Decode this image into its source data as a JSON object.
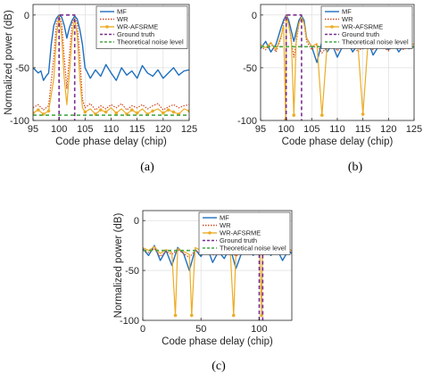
{
  "colors": {
    "mf": "#1f6fbf",
    "wr": "#d0471f",
    "wr_afsrme": "#ecac25",
    "ground_truth": "#7a2f8f",
    "noise_level": "#45a845"
  },
  "chart_data": [
    {
      "type": "line",
      "caption": "(a)",
      "xlabel": "Code phase delay (chip)",
      "ylabel": "Normalized power (dB)",
      "xlim": [
        95,
        125
      ],
      "ylim": [
        -100,
        10
      ],
      "xticks": [
        95,
        100,
        105,
        110,
        115,
        120,
        125
      ],
      "yticks": [
        0,
        -50,
        -100
      ],
      "grid": true,
      "legend": "top-right",
      "series": [
        {
          "name": "MF",
          "key": "mf",
          "x": [
            95,
            96,
            96.5,
            97,
            97.5,
            98,
            98.5,
            99,
            99.5,
            100,
            100.5,
            101,
            101.5,
            102,
            102.5,
            103,
            103.5,
            104,
            104.5,
            105,
            106,
            107,
            108,
            109,
            110,
            111,
            112,
            113,
            114,
            115,
            116,
            117,
            118,
            119,
            120,
            121,
            122,
            123,
            124,
            125
          ],
          "y": [
            -50,
            -55,
            -53,
            -62,
            -58,
            -55,
            -28,
            -10,
            -3,
            0,
            -2,
            -10,
            -22,
            -12,
            -5,
            -1,
            -4,
            -14,
            -28,
            -50,
            -60,
            -52,
            -58,
            -47,
            -55,
            -62,
            -50,
            -57,
            -53,
            -60,
            -48,
            -55,
            -58,
            -52,
            -60,
            -55,
            -50,
            -57,
            -53,
            -52
          ]
        },
        {
          "name": "WR",
          "key": "wr",
          "x": [
            95,
            96,
            97,
            98,
            99,
            99.5,
            100,
            100.5,
            101,
            101.5,
            102,
            102.5,
            103,
            103.5,
            104,
            104.5,
            105,
            106,
            107,
            108,
            109,
            110,
            111,
            112,
            113,
            114,
            115,
            116,
            117,
            118,
            119,
            120,
            121,
            122,
            123,
            124,
            125
          ],
          "y": [
            -88,
            -85,
            -90,
            -86,
            -40,
            -8,
            0,
            -8,
            -40,
            -70,
            -38,
            -8,
            -3,
            -8,
            -40,
            -80,
            -88,
            -84,
            -90,
            -86,
            -89,
            -85,
            -88,
            -84,
            -90,
            -86,
            -88,
            -85,
            -89,
            -86,
            -84,
            -90,
            -87,
            -85,
            -88,
            -86,
            -85
          ]
        },
        {
          "name": "WR-AFSRME",
          "key": "wr_afsrme",
          "x": [
            95,
            96,
            97,
            98,
            99,
            99.5,
            100,
            100.5,
            101,
            101.5,
            102,
            102.5,
            103,
            103.5,
            104,
            104.5,
            105,
            106,
            107,
            108,
            109,
            110,
            111,
            112,
            113,
            114,
            115,
            116,
            117,
            118,
            119,
            120,
            121,
            122,
            123,
            124,
            125
          ],
          "y": [
            -93,
            -90,
            -94,
            -91,
            -60,
            -20,
            -1,
            -20,
            -60,
            -85,
            -55,
            -20,
            -3,
            -20,
            -60,
            -88,
            -92,
            -89,
            -94,
            -90,
            -92,
            -88,
            -93,
            -89,
            -94,
            -90,
            -93,
            -89,
            -94,
            -91,
            -89,
            -93,
            -90,
            -92,
            -94,
            -89,
            -91
          ]
        },
        {
          "name": "Ground truth",
          "key": "ground_truth",
          "style": "dashed",
          "x": [
            100,
            100,
            103,
            103
          ],
          "y": [
            -100,
            0,
            0,
            -100
          ]
        },
        {
          "name": "Theoretical noise level",
          "key": "noise_level",
          "style": "dashed",
          "x": [
            95,
            125
          ],
          "y": [
            -95,
            -95
          ]
        }
      ]
    },
    {
      "type": "line",
      "caption": "(b)",
      "xlabel": "Code phase delay (chip)",
      "ylabel": "",
      "xlim": [
        95,
        125
      ],
      "ylim": [
        -100,
        10
      ],
      "xticks": [
        95,
        100,
        105,
        110,
        115,
        120,
        125
      ],
      "yticks": [
        0,
        -50,
        -100
      ],
      "grid": true,
      "legend": "top-right",
      "series": [
        {
          "name": "MF",
          "key": "mf",
          "x": [
            95,
            96,
            97,
            98,
            98.5,
            99,
            99.5,
            100,
            100.5,
            101,
            101.5,
            102,
            102.5,
            103,
            103.5,
            104,
            105,
            106,
            107,
            108,
            109,
            110,
            111,
            112,
            113,
            114,
            115,
            116,
            117,
            118,
            119,
            120,
            121,
            122,
            123,
            124,
            125
          ],
          "y": [
            -32,
            -25,
            -35,
            -28,
            -20,
            -12,
            -5,
            0,
            -5,
            -15,
            -25,
            -15,
            -5,
            -1,
            -5,
            -22,
            -30,
            -45,
            -25,
            -35,
            -28,
            -40,
            -30,
            -25,
            -35,
            -28,
            -32,
            -25,
            -38,
            -30,
            -27,
            -33,
            -26,
            -35,
            -29,
            -32,
            -30
          ]
        },
        {
          "name": "WR",
          "key": "wr",
          "x": [
            95,
            96,
            97,
            98,
            99,
            99.5,
            100,
            100.5,
            101,
            101.5,
            102,
            102.5,
            103,
            103.5,
            104,
            105,
            106,
            107,
            108,
            109,
            110,
            111,
            112,
            113,
            114,
            115,
            116,
            117,
            118,
            119,
            120,
            121,
            122,
            123,
            124,
            125
          ],
          "y": [
            -30,
            -33,
            -27,
            -35,
            -22,
            -8,
            0,
            -8,
            -25,
            -40,
            -25,
            -8,
            -2,
            -8,
            -25,
            -33,
            -28,
            -36,
            -30,
            -27,
            -34,
            -29,
            -32,
            -26,
            -35,
            -30,
            -28,
            -33,
            -27,
            -31,
            -34,
            -28,
            -30,
            -33,
            -29,
            -31
          ]
        },
        {
          "name": "WR-AFSRME",
          "key": "wr_afsrme",
          "x": [
            95,
            96,
            97,
            98,
            99,
            99.5,
            99.9,
            100,
            100.5,
            101,
            101.5,
            102,
            102.5,
            103,
            103.5,
            104,
            105,
            106,
            107,
            108,
            109,
            110,
            111,
            112,
            113,
            114,
            115,
            116,
            117,
            118,
            119,
            120,
            121,
            122,
            123,
            124,
            125
          ],
          "y": [
            -28,
            -31,
            -26,
            -33,
            -20,
            -10,
            -99,
            -1,
            -10,
            -22,
            -95,
            -20,
            -8,
            -2,
            -8,
            -22,
            -30,
            -27,
            -95,
            -29,
            -26,
            -31,
            -28,
            -25,
            -30,
            -27,
            -94,
            -26,
            -32,
            -28,
            -25,
            -30,
            -27,
            -29,
            -31,
            -26,
            -28
          ]
        },
        {
          "name": "Ground truth",
          "key": "ground_truth",
          "style": "dashed",
          "x": [
            100,
            100,
            103,
            103
          ],
          "y": [
            -100,
            0,
            0,
            -100
          ]
        },
        {
          "name": "Theoretical noise level",
          "key": "noise_level",
          "style": "dashed",
          "x": [
            95,
            125
          ],
          "y": [
            -30,
            -30
          ]
        }
      ]
    },
    {
      "type": "line",
      "caption": "(c)",
      "xlabel": "Code phase delay (chip)",
      "ylabel": "Normalized power (dB)",
      "xlim": [
        0,
        128
      ],
      "ylim": [
        -100,
        10
      ],
      "xticks": [
        0,
        50,
        100
      ],
      "yticks": [
        0,
        -50,
        -100
      ],
      "grid": true,
      "legend": "top-right",
      "series": [
        {
          "name": "MF",
          "key": "mf",
          "x": [
            0,
            5,
            10,
            15,
            20,
            25,
            30,
            35,
            40,
            45,
            50,
            55,
            60,
            65,
            70,
            75,
            80,
            85,
            90,
            95,
            98,
            100,
            102,
            103,
            105,
            110,
            115,
            120,
            125,
            128
          ],
          "y": [
            -28,
            -35,
            -25,
            -40,
            -30,
            -45,
            -27,
            -33,
            -50,
            -29,
            -36,
            -26,
            -42,
            -31,
            -38,
            -27,
            -48,
            -32,
            -29,
            -35,
            -10,
            0,
            -8,
            -2,
            -20,
            -35,
            -28,
            -40,
            -30,
            -33
          ]
        },
        {
          "name": "WR",
          "key": "wr",
          "x": [
            0,
            5,
            10,
            15,
            20,
            25,
            30,
            35,
            40,
            45,
            50,
            55,
            60,
            65,
            70,
            75,
            80,
            85,
            90,
            95,
            98,
            100,
            102,
            103,
            105,
            110,
            115,
            120,
            125,
            128
          ],
          "y": [
            -30,
            -32,
            -28,
            -36,
            -31,
            -34,
            -29,
            -33,
            -37,
            -30,
            -32,
            -28,
            -35,
            -31,
            -33,
            -29,
            -36,
            -30,
            -32,
            -31,
            -12,
            0,
            -10,
            -3,
            -25,
            -32,
            -30,
            -33,
            -29,
            -31
          ]
        },
        {
          "name": "WR-AFSRME",
          "key": "wr_afsrme",
          "x": [
            0,
            5,
            10,
            15,
            20,
            25,
            28,
            30,
            35,
            40,
            42,
            45,
            50,
            55,
            60,
            65,
            70,
            75,
            78,
            80,
            85,
            90,
            95,
            98,
            100,
            102,
            103,
            105,
            110,
            115,
            120,
            125,
            128
          ],
          "y": [
            -27,
            -30,
            -26,
            -33,
            -29,
            -32,
            -95,
            -28,
            -31,
            -34,
            -95,
            -27,
            -30,
            -26,
            -33,
            -29,
            -32,
            -28,
            -95,
            -31,
            -27,
            -30,
            -29,
            -10,
            -1,
            -95,
            -2,
            -22,
            -30,
            -27,
            -33,
            -28,
            -30
          ]
        },
        {
          "name": "Ground truth",
          "key": "ground_truth",
          "style": "dashed",
          "x": [
            100,
            100,
            103,
            103
          ],
          "y": [
            -100,
            0,
            0,
            -100
          ]
        },
        {
          "name": "Theoretical noise level",
          "key": "noise_level",
          "style": "dashed",
          "x": [
            0,
            128
          ],
          "y": [
            -30,
            -30
          ]
        }
      ]
    }
  ]
}
